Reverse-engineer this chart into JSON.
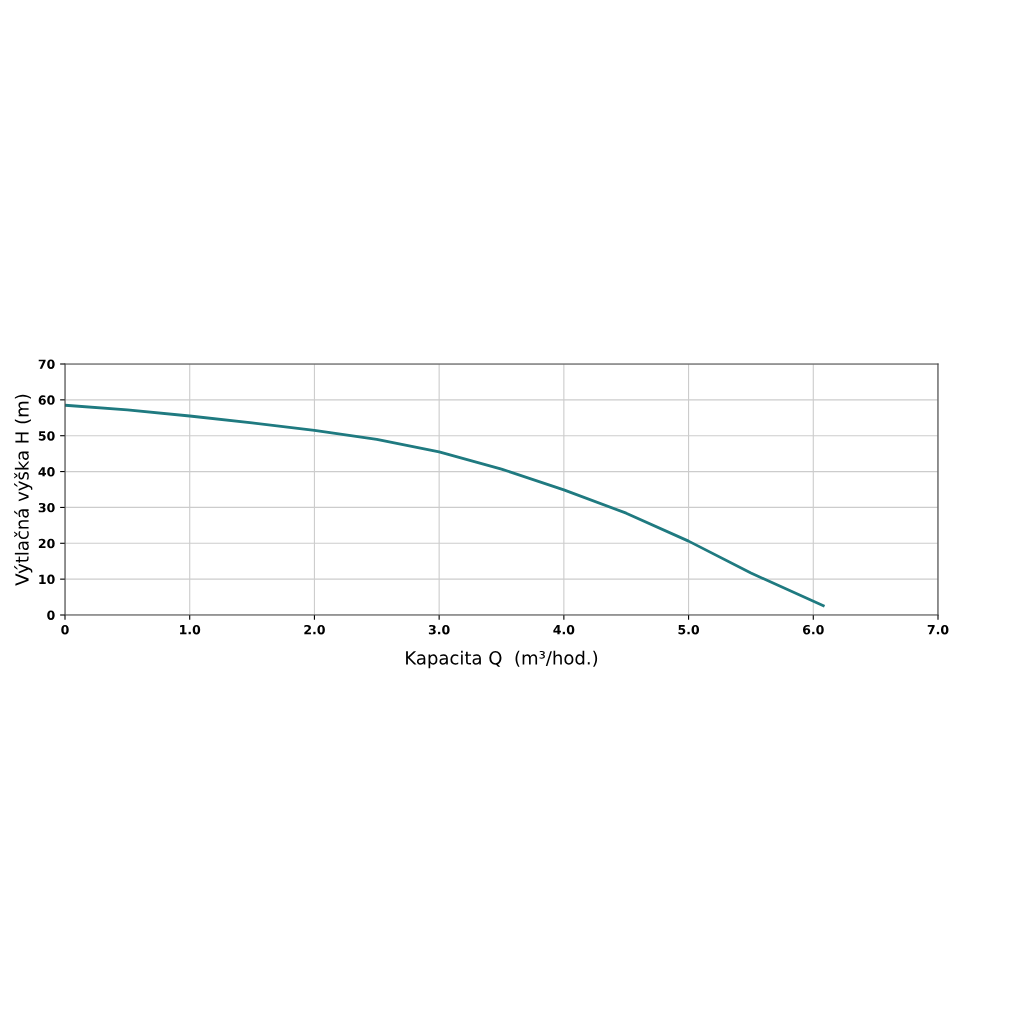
{
  "chart_data": {
    "type": "line",
    "xlabel": "Kapacita Q  (m³/hod.)",
    "ylabel": "Výtlačná výška H (m)",
    "series": [
      {
        "color": "#1f7a80",
        "x": [
          0,
          0.5,
          1.0,
          1.5,
          2.0,
          2.5,
          3.0,
          3.5,
          4.0,
          4.5,
          5.0,
          5.5,
          6.08
        ],
        "values": [
          58.5,
          57.2,
          55.5,
          53.6,
          51.5,
          49,
          45.5,
          40.7,
          34.9,
          28.4,
          20.6,
          11.7,
          2.6
        ]
      }
    ],
    "xlim": [
      0,
      7.0
    ],
    "xticks": [
      0,
      {
        "value": 1.0,
        "label": "1.0"
      },
      {
        "value": 2.0,
        "label": "2.0"
      },
      {
        "value": 3.0,
        "label": "3.0"
      },
      {
        "value": 4.0,
        "label": "4.0"
      },
      {
        "value": 5.0,
        "label": "5.0"
      },
      {
        "value": 6.0,
        "label": "6.0"
      },
      {
        "value": 7.0,
        "label": "7.0"
      }
    ],
    "ylim": [
      0,
      70
    ],
    "yticks": [
      0,
      10,
      20,
      30,
      40,
      50,
      60,
      70
    ],
    "grid": true,
    "marker": "none",
    "line_style": "solid"
  }
}
